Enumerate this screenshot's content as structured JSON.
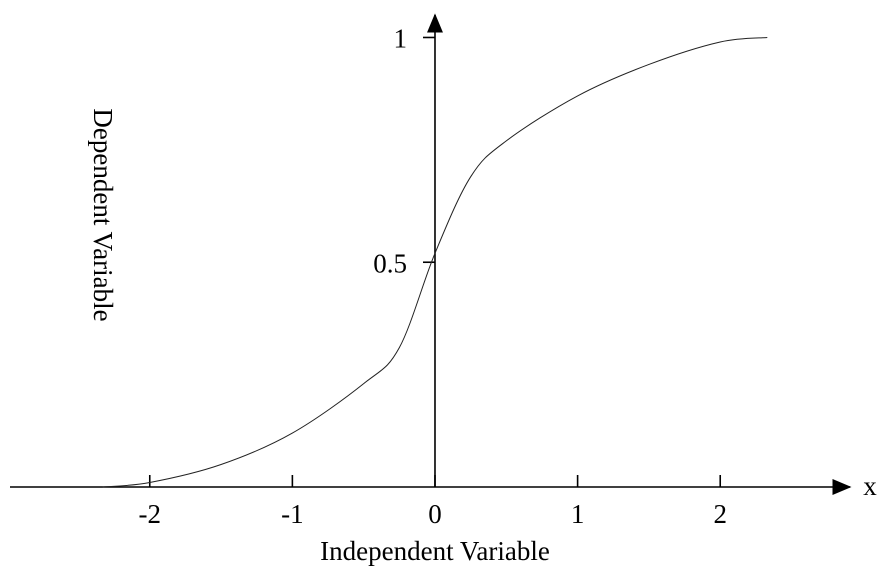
{
  "chart_data": {
    "type": "line",
    "x_label": "Independent Variable",
    "y_label": "Dependent Variable",
    "x_axis_name": "x",
    "x": [
      -2.33,
      -2,
      -1.5,
      -1,
      -0.5,
      -0.25,
      0,
      0.25,
      0.5,
      1,
      1.5,
      2,
      2.33
    ],
    "series": [
      {
        "color": "#222222",
        "values": [
          0,
          0.01,
          0.05,
          0.12,
          0.23,
          0.31,
          0.52,
          0.69,
          0.77,
          0.87,
          0.94,
          0.99,
          1.0
        ]
      }
    ],
    "xlim": [
      -2.98,
      2.91
    ],
    "ylim": [
      0,
      1.05
    ],
    "xticks": [
      -2,
      -1,
      0,
      1,
      2
    ],
    "yticks": [
      0.5,
      1
    ]
  }
}
